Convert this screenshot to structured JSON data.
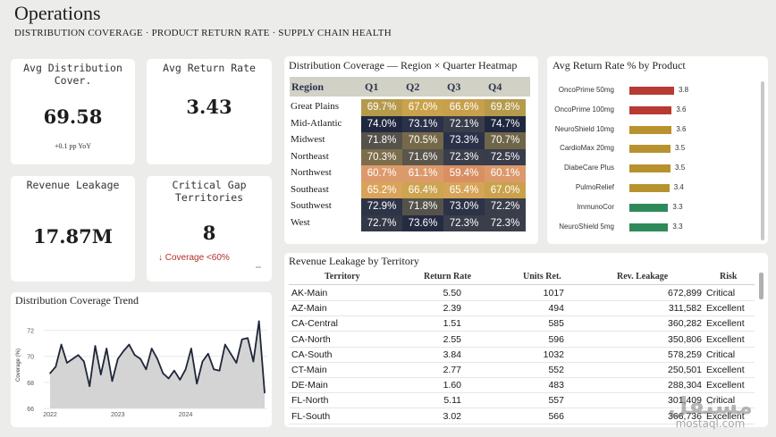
{
  "header": {
    "title": "Operations",
    "subtitle": "DISTRIBUTION COVERAGE · PRODUCT RETURN RATE · SUPPLY CHAIN HEALTH"
  },
  "kpis": {
    "avg_distribution": {
      "label": "Avg Distribution Cover.",
      "value": "69.58",
      "sub": "+0.1 pp YoY"
    },
    "avg_return": {
      "label": "Avg Return Rate",
      "value": "3.43"
    },
    "revenue_leakage": {
      "label": "Revenue Leakage",
      "value": "17.87M"
    },
    "critical_gap": {
      "label": "Critical Gap Territories",
      "value": "8",
      "alert": "↓ Coverage <60%"
    }
  },
  "heatmap": {
    "title": "Distribution Coverage — Region × Quarter Heatmap",
    "columns": [
      "Region",
      "Q1",
      "Q2",
      "Q3",
      "Q4"
    ],
    "rows": [
      {
        "region": "Great Plains",
        "values": [
          "69.7%",
          "67.0%",
          "66.6%",
          "69.8%"
        ],
        "colors": [
          "#b69a4c",
          "#c9a24b",
          "#c89f4d",
          "#b69a4c"
        ]
      },
      {
        "region": "Mid-Atlantic",
        "values": [
          "74.0%",
          "73.1%",
          "72.1%",
          "74.7%"
        ],
        "colors": [
          "#20283f",
          "#2a3148",
          "#3a3e4b",
          "#20283f"
        ]
      },
      {
        "region": "Midwest",
        "values": [
          "71.8%",
          "70.5%",
          "73.3%",
          "70.7%"
        ],
        "colors": [
          "#55524b",
          "#75694a",
          "#2a3148",
          "#6f6549"
        ]
      },
      {
        "region": "Northeast",
        "values": [
          "70.3%",
          "71.6%",
          "72.3%",
          "72.5%"
        ],
        "colors": [
          "#7c6e4b",
          "#5a564c",
          "#3a3e4b",
          "#383c4b"
        ]
      },
      {
        "region": "Northwest",
        "values": [
          "60.7%",
          "61.1%",
          "59.4%",
          "60.1%"
        ],
        "colors": [
          "#dc9a6c",
          "#dc9a6c",
          "#d98f62",
          "#dc9a6c"
        ]
      },
      {
        "region": "Southeast",
        "values": [
          "65.2%",
          "66.4%",
          "65.4%",
          "67.0%"
        ],
        "colors": [
          "#d9a35a",
          "#cda450",
          "#d6a457",
          "#c9a24b"
        ]
      },
      {
        "region": "Southwest",
        "values": [
          "72.9%",
          "71.8%",
          "73.0%",
          "72.2%"
        ],
        "colors": [
          "#2e3447",
          "#55524b",
          "#2c3347",
          "#3a3e4b"
        ]
      },
      {
        "region": "West",
        "values": [
          "72.7%",
          "73.6%",
          "72.3%",
          "72.3%"
        ],
        "colors": [
          "#343948",
          "#252c42",
          "#3a3e4b",
          "#3a3e4b"
        ]
      }
    ]
  },
  "return_chart": {
    "title": "Avg Return Rate % by Product",
    "items": [
      {
        "product": "OncoPrime 50mg",
        "value": 3.8,
        "label": "3.8",
        "color": "#b73a33"
      },
      {
        "product": "OncoPrime 100mg",
        "value": 3.6,
        "label": "3.6",
        "color": "#b73a33"
      },
      {
        "product": "NeuroShield 10mg",
        "value": 3.6,
        "label": "3.6",
        "color": "#b8922f"
      },
      {
        "product": "CardioMax 20mg",
        "value": 3.5,
        "label": "3.5",
        "color": "#b8922f"
      },
      {
        "product": "DiabeCare Plus",
        "value": 3.5,
        "label": "3.5",
        "color": "#b8922f"
      },
      {
        "product": "PulmoRelief",
        "value": 3.4,
        "label": "3.4",
        "color": "#b8922f"
      },
      {
        "product": "ImmunoCor",
        "value": 3.3,
        "label": "3.3",
        "color": "#2f8a5a"
      },
      {
        "product": "NeuroShield 5mg",
        "value": 3.3,
        "label": "3.3",
        "color": "#2f8a5a"
      }
    ]
  },
  "trend": {
    "title": "Distribution Coverage Trend",
    "ylabel": "Coverage (%)",
    "yticks": [
      "72",
      "70",
      "68",
      "66"
    ],
    "xticks": [
      "2022",
      "2023",
      "2024"
    ]
  },
  "chart_data": {
    "type": "line",
    "title": "Distribution Coverage Trend",
    "ylabel": "Coverage (%)",
    "ylim": [
      66,
      73
    ],
    "x_start": "2022-01",
    "x_ticks": [
      "2022",
      "2023",
      "2024"
    ],
    "values": [
      68.7,
      69.2,
      70.9,
      69.5,
      69.8,
      70.1,
      69.6,
      67.7,
      70.8,
      68.6,
      70.6,
      68.1,
      69.8,
      70.4,
      70.9,
      70.1,
      69.8,
      69.0,
      70.6,
      69.8,
      68.7,
      68.3,
      68.9,
      68.2,
      69.0,
      70.6,
      67.9,
      69.6,
      70.2,
      69.0,
      68.9,
      70.9,
      70.2,
      69.5,
      71.3,
      71.4,
      69.6,
      72.7,
      67.2
    ]
  },
  "leakage_table": {
    "title": "Revenue Leakage by Territory",
    "columns": [
      "Territory",
      "Return Rate",
      "Units Ret.",
      "Rev. Leakage",
      "Risk"
    ],
    "rows": [
      [
        "AK-Main",
        "5.50",
        "1017",
        "672,899",
        "Critical"
      ],
      [
        "AZ-Main",
        "2.39",
        "494",
        "311,582",
        "Excellent"
      ],
      [
        "CA-Central",
        "1.51",
        "585",
        "360,282",
        "Excellent"
      ],
      [
        "CA-North",
        "2.55",
        "596",
        "350,806",
        "Excellent"
      ],
      [
        "CA-South",
        "3.84",
        "1032",
        "578,259",
        "Critical"
      ],
      [
        "CT-Main",
        "2.77",
        "552",
        "250,501",
        "Excellent"
      ],
      [
        "DE-Main",
        "1.60",
        "483",
        "288,304",
        "Excellent"
      ],
      [
        "FL-North",
        "5.11",
        "557",
        "301,409",
        "Critical"
      ],
      [
        "FL-South",
        "3.02",
        "566",
        "366,736",
        "Excellent"
      ]
    ]
  },
  "watermark": {
    "arabic": "مستقل",
    "latin": "mostaql.com"
  }
}
